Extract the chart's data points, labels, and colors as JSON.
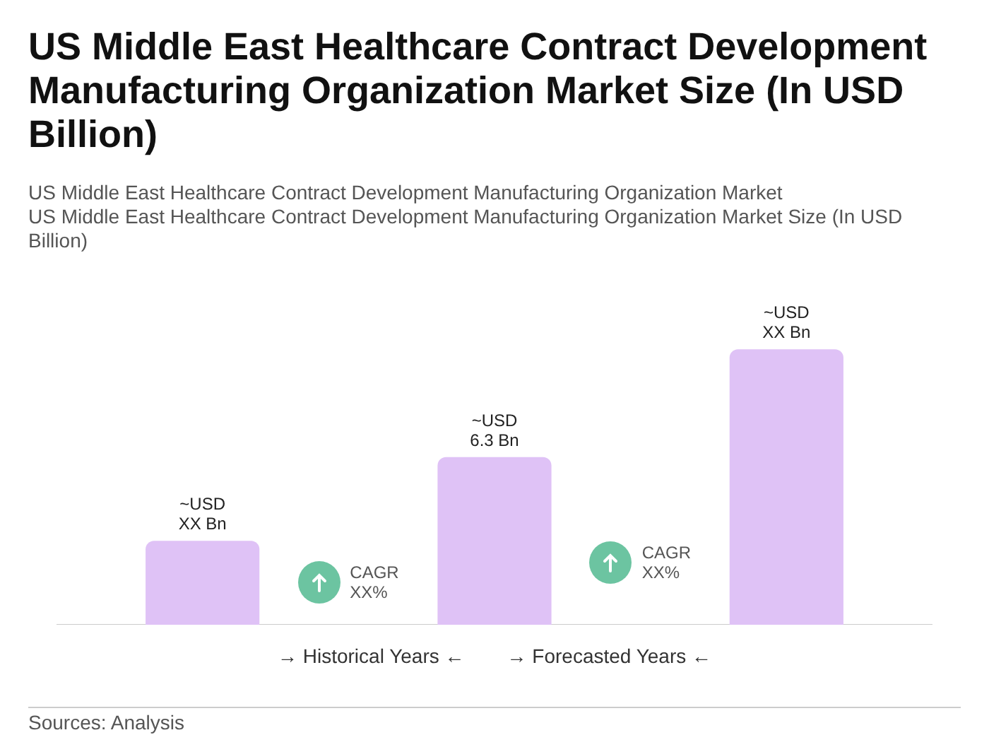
{
  "chart_data": {
    "type": "bar",
    "title": "US Middle East Healthcare Contract Development Manufacturing Organization Market Size (In USD Billion)",
    "subtitle": "US Middle East Healthcare Contract Development Manufacturing Organization Market",
    "categories": [
      null,
      null,
      null
    ],
    "values": [
      3.15,
      6.3,
      10.35
    ],
    "tick_labels": false,
    "value_labels": [
      "~USD\nXX Bn",
      "~USD\n6.3 Bn",
      "~USD\nXX Bn"
    ],
    "color": "#dfc2f6",
    "grid": false,
    "legend": false,
    "annotations": [
      "US Middle East Healthcare Contract Development Manufacturing Organization Market Size (In USD Billion)",
      "CAGR\nXX%",
      "CAGR\nXX%",
      "→ Historical Years ←",
      "→ Forecasted Years ←",
      "Sources: Analysis"
    ]
  }
}
